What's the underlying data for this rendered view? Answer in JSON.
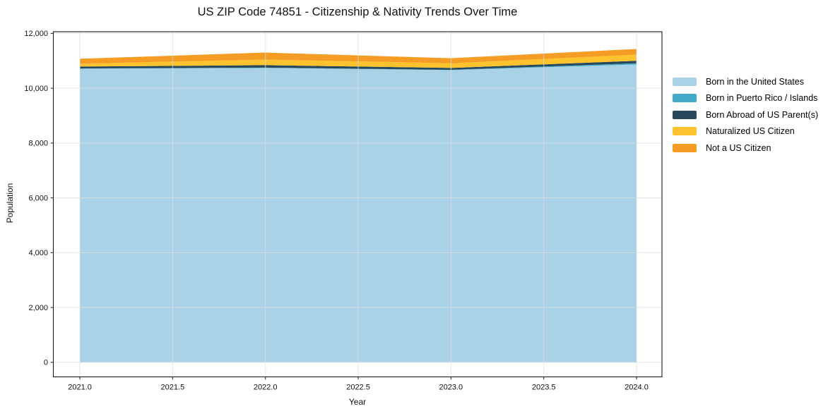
{
  "figure": {
    "title": "US ZIP Code 74851 - Citizenship & Nativity Trends Over Time"
  },
  "chart_data": {
    "type": "area",
    "stacked": true,
    "title": "US ZIP Code 74851 - Citizenship & Nativity Trends Over Time",
    "xlabel": "Year",
    "ylabel": "Population",
    "x": [
      2021,
      2022,
      2023,
      2024
    ],
    "series": [
      {
        "name": "Born in the United States",
        "color": "#a9d2e6",
        "values": [
          10710,
          10740,
          10660,
          10865
        ]
      },
      {
        "name": "Born in Puerto Rico / Islands",
        "color": "#45aac8",
        "values": [
          10,
          10,
          10,
          45
        ]
      },
      {
        "name": "Born Abroad of US Parent(s)",
        "color": "#26495c",
        "values": [
          70,
          90,
          70,
          90
        ]
      },
      {
        "name": "Naturalized US Citizen",
        "color": "#fcc32e",
        "values": [
          105,
          205,
          170,
          225
        ]
      },
      {
        "name": "Not a US Citizen",
        "color": "#f59c25",
        "values": [
          180,
          255,
          185,
          205
        ]
      }
    ],
    "xticks": {
      "values": [
        2021.0,
        2021.5,
        2022.0,
        2022.5,
        2023.0,
        2023.5,
        2024.0
      ],
      "labels": [
        "2021.0",
        "2021.5",
        "2022.0",
        "2022.5",
        "2023.0",
        "2023.5",
        "2024.0"
      ]
    },
    "yticks": {
      "values": [
        0,
        2000,
        4000,
        6000,
        8000,
        10000,
        12000
      ],
      "labels": [
        "0",
        "2,000",
        "4,000",
        "6,000",
        "8,000",
        "10,000",
        "12,000"
      ]
    },
    "xlim": [
      2020.857,
      2024.137
    ],
    "ylim": [
      -530,
      12060
    ],
    "grid": true,
    "legend_position": "center right",
    "grid_color": "#dedede",
    "spine_color": "#1a1a1a"
  }
}
